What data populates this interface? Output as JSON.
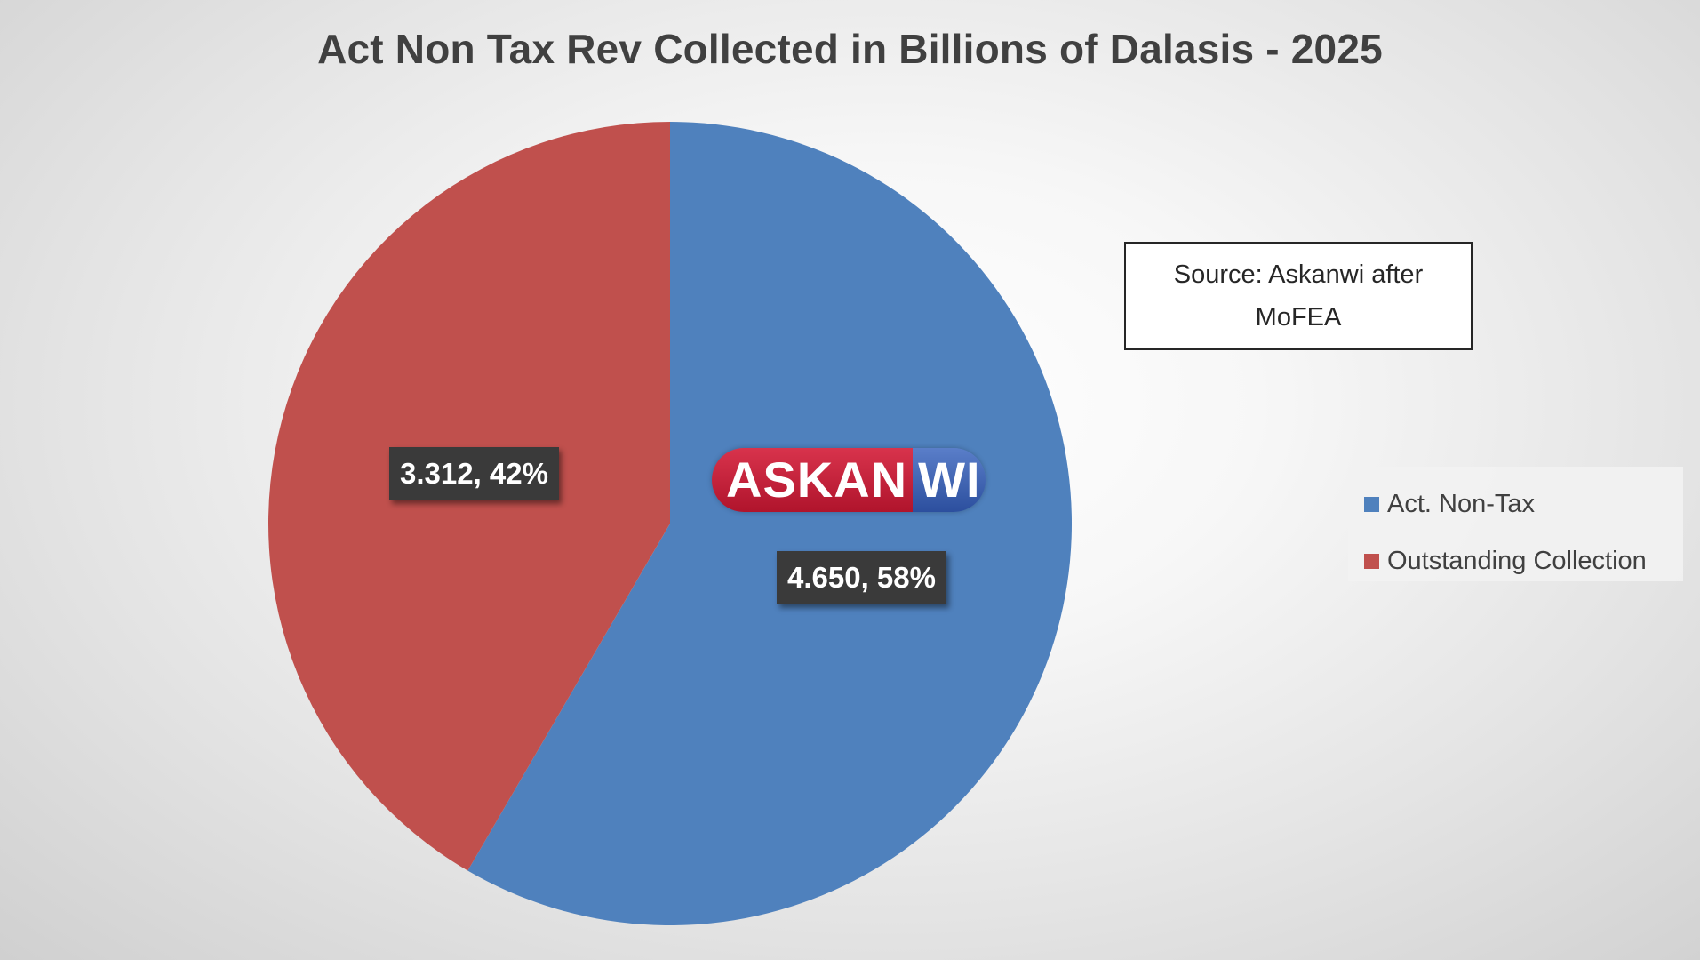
{
  "chart_data": {
    "type": "pie",
    "title": "Act Non Tax Rev Collected in Billions of Dalasis - 2025",
    "slices": [
      {
        "name": "Act. Non-Tax",
        "value": 4.65,
        "percent": 58,
        "label": "4.650, 58%",
        "color": "#4f81bd"
      },
      {
        "name": "Outstanding Collection",
        "value": 3.312,
        "percent": 42,
        "label": "3.312, 42%",
        "color": "#c0504d"
      }
    ],
    "legend_position": "right"
  },
  "annotation": {
    "source_text": "Source: Askanwi after MoFEA"
  },
  "watermark": {
    "left_text": "ASKAN",
    "right_text": "WI"
  }
}
